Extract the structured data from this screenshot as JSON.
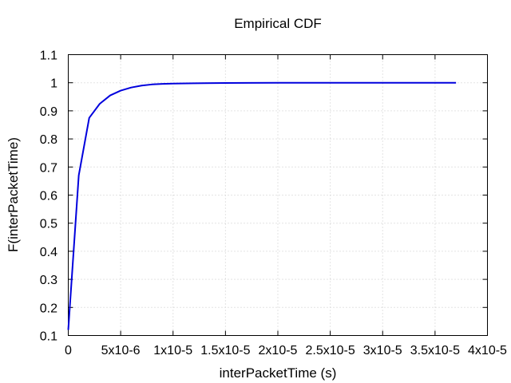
{
  "chart_data": {
    "type": "line",
    "title": "Empirical CDF",
    "xlabel": "interPacketTime (s)",
    "ylabel": "F(interPacketTime)",
    "xlim": [
      0,
      4e-05
    ],
    "ylim": [
      0.1,
      1.1
    ],
    "grid": true,
    "x_ticks": [
      {
        "value": 0,
        "label": "0"
      },
      {
        "value": 5e-06,
        "label": "5x10-6"
      },
      {
        "value": 1e-05,
        "label": "1x10-5"
      },
      {
        "value": 1.5e-05,
        "label": "1.5x10-5"
      },
      {
        "value": 2e-05,
        "label": "2x10-5"
      },
      {
        "value": 2.5e-05,
        "label": "2.5x10-5"
      },
      {
        "value": 3e-05,
        "label": "3x10-5"
      },
      {
        "value": 3.5e-05,
        "label": "3.5x10-5"
      },
      {
        "value": 4e-05,
        "label": "4x10-5"
      }
    ],
    "y_ticks": [
      {
        "value": 0.1,
        "label": "0.1"
      },
      {
        "value": 0.2,
        "label": "0.2"
      },
      {
        "value": 0.3,
        "label": "0.3"
      },
      {
        "value": 0.4,
        "label": "0.4"
      },
      {
        "value": 0.5,
        "label": "0.5"
      },
      {
        "value": 0.6,
        "label": "0.6"
      },
      {
        "value": 0.7,
        "label": "0.7"
      },
      {
        "value": 0.8,
        "label": "0.8"
      },
      {
        "value": 0.9,
        "label": "0.9"
      },
      {
        "value": 1.0,
        "label": "1"
      },
      {
        "value": 1.1,
        "label": "1.1"
      }
    ],
    "series": [
      {
        "color": "#0000dd",
        "x": [
          0,
          1e-06,
          2e-06,
          3e-06,
          4e-06,
          5e-06,
          6e-06,
          7e-06,
          8e-06,
          9e-06,
          1e-05,
          1.2e-05,
          1.5e-05,
          1.7e-05,
          2e-05,
          2.5e-05,
          3e-05,
          3.5e-05,
          3.7e-05
        ],
        "y": [
          0.12,
          0.67,
          0.875,
          0.925,
          0.955,
          0.972,
          0.983,
          0.99,
          0.994,
          0.996,
          0.997,
          0.998,
          0.999,
          0.9995,
          1.0,
          1.0,
          1.0,
          1.0,
          1.0
        ]
      }
    ]
  }
}
